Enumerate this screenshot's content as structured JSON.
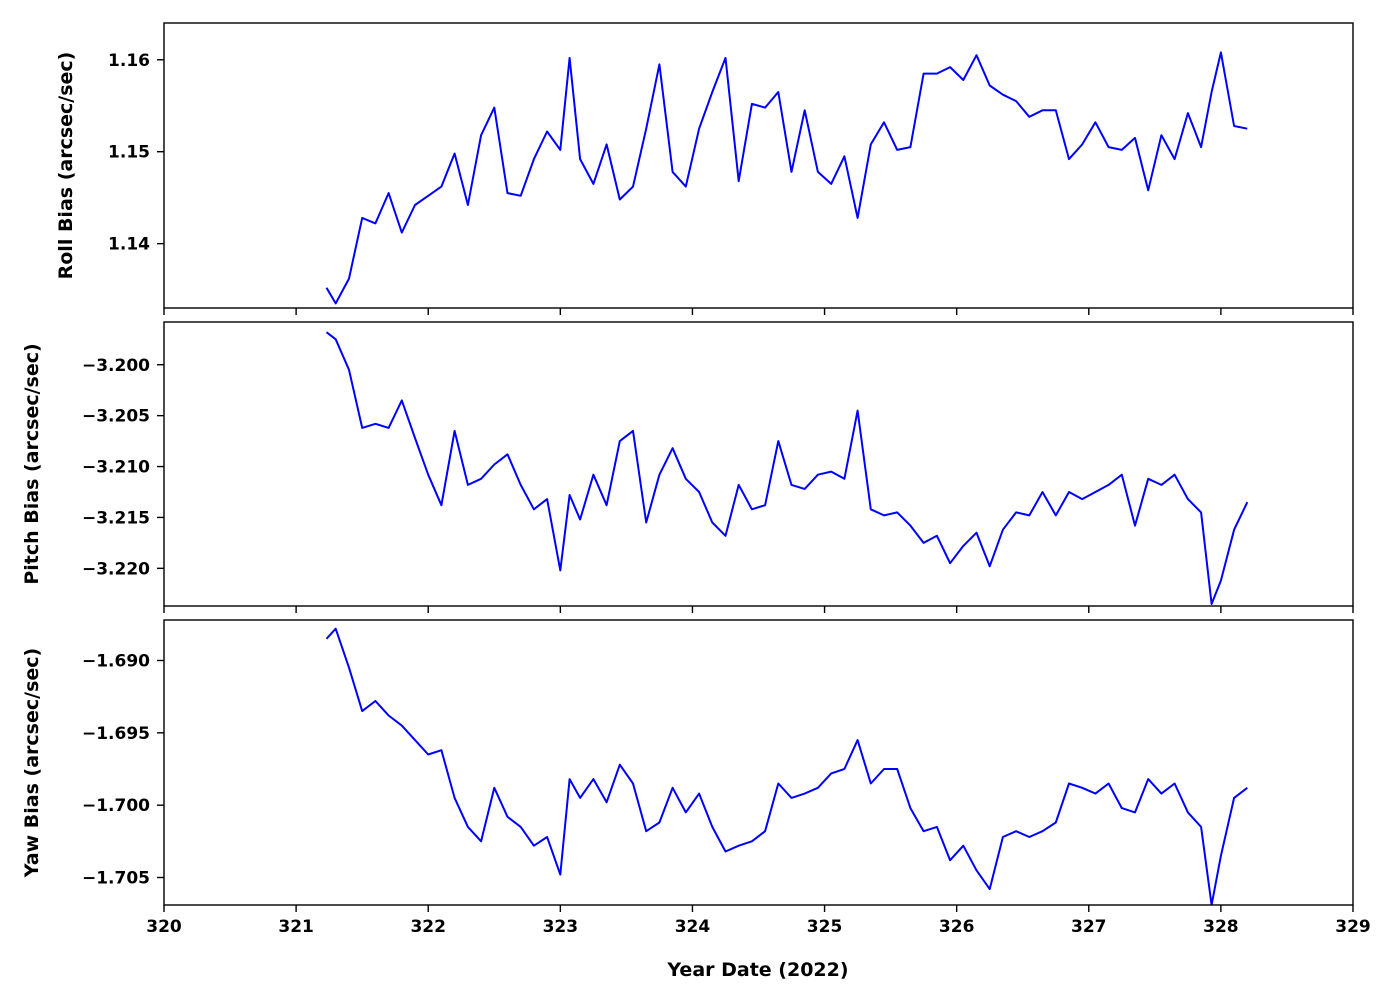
{
  "chart_data": {
    "type": "line",
    "figure": {
      "xlabel": "Year Date (2022)",
      "xlim": [
        320,
        329
      ],
      "xticks": [
        320,
        321,
        322,
        323,
        324,
        325,
        326,
        327,
        328,
        329
      ],
      "xticklabels": [
        "320",
        "321",
        "322",
        "323",
        "324",
        "325",
        "326",
        "327",
        "328",
        "329"
      ],
      "line_color": "#0000ff"
    },
    "panels": [
      {
        "ylabel": "Roll Bias (arcsec/sec)",
        "ylim": [
          1.133,
          1.164
        ],
        "yticks": [
          1.14,
          1.15,
          1.16
        ],
        "yticklabels": [
          "1.14",
          "1.15",
          "1.16"
        ],
        "x": [
          321.23,
          321.3,
          321.4,
          321.5,
          321.6,
          321.7,
          321.8,
          321.9,
          322.0,
          322.1,
          322.2,
          322.3,
          322.4,
          322.5,
          322.6,
          322.7,
          322.8,
          322.9,
          323.0,
          323.07,
          323.15,
          323.25,
          323.35,
          323.45,
          323.55,
          323.65,
          323.75,
          323.85,
          323.95,
          324.05,
          324.15,
          324.25,
          324.35,
          324.45,
          324.55,
          324.65,
          324.75,
          324.85,
          324.95,
          325.05,
          325.15,
          325.25,
          325.35,
          325.45,
          325.55,
          325.65,
          325.75,
          325.85,
          325.95,
          326.05,
          326.15,
          326.25,
          326.35,
          326.45,
          326.55,
          326.65,
          326.75,
          326.85,
          326.95,
          327.05,
          327.15,
          327.25,
          327.35,
          327.45,
          327.55,
          327.65,
          327.75,
          327.85,
          327.93,
          328.0,
          328.1,
          328.2
        ],
        "y": [
          1.1352,
          1.1335,
          1.1362,
          1.1428,
          1.1422,
          1.1455,
          1.1412,
          1.1442,
          1.1452,
          1.1462,
          1.1498,
          1.1442,
          1.1518,
          1.1548,
          1.1455,
          1.1452,
          1.1492,
          1.1522,
          1.1502,
          1.1602,
          1.1492,
          1.1465,
          1.1508,
          1.1448,
          1.1462,
          1.1525,
          1.1595,
          1.1478,
          1.1462,
          1.1525,
          1.1565,
          1.1602,
          1.1468,
          1.1552,
          1.1548,
          1.1565,
          1.1478,
          1.1545,
          1.1478,
          1.1465,
          1.1495,
          1.1428,
          1.1508,
          1.1532,
          1.1502,
          1.1505,
          1.1585,
          1.1585,
          1.1592,
          1.1578,
          1.1605,
          1.1572,
          1.1562,
          1.1555,
          1.1538,
          1.1545,
          1.1545,
          1.1492,
          1.1508,
          1.1532,
          1.1505,
          1.1502,
          1.1515,
          1.1458,
          1.1518,
          1.1492,
          1.1542,
          1.1505,
          1.1565,
          1.1608,
          1.1528,
          1.1525
        ]
      },
      {
        "ylabel": "Pitch Bias (arcsec/sec)",
        "ylim": [
          -3.2237,
          -3.1958
        ],
        "yticks": [
          -3.2,
          -3.205,
          -3.21,
          -3.215,
          -3.22
        ],
        "yticklabels": [
          "−3.200",
          "−3.205",
          "−3.210",
          "−3.215",
          "−3.220"
        ],
        "x": [
          321.23,
          321.3,
          321.4,
          321.5,
          321.6,
          321.7,
          321.8,
          321.9,
          322.0,
          322.1,
          322.2,
          322.3,
          322.4,
          322.5,
          322.6,
          322.7,
          322.8,
          322.9,
          323.0,
          323.07,
          323.15,
          323.25,
          323.35,
          323.45,
          323.55,
          323.65,
          323.75,
          323.85,
          323.95,
          324.05,
          324.15,
          324.25,
          324.35,
          324.45,
          324.55,
          324.65,
          324.75,
          324.85,
          324.95,
          325.05,
          325.15,
          325.25,
          325.35,
          325.45,
          325.55,
          325.65,
          325.75,
          325.85,
          325.95,
          326.05,
          326.15,
          326.25,
          326.35,
          326.45,
          326.55,
          326.65,
          326.75,
          326.85,
          326.95,
          327.05,
          327.15,
          327.25,
          327.35,
          327.45,
          327.55,
          327.65,
          327.75,
          327.85,
          327.93,
          328.0,
          328.1,
          328.2
        ],
        "y": [
          -3.1968,
          -3.1975,
          -3.2005,
          -3.2062,
          -3.2058,
          -3.2062,
          -3.2035,
          -3.2072,
          -3.2108,
          -3.2138,
          -3.2065,
          -3.2118,
          -3.2112,
          -3.2098,
          -3.2088,
          -3.2118,
          -3.2142,
          -3.2132,
          -3.2202,
          -3.2128,
          -3.2152,
          -3.2108,
          -3.2138,
          -3.2075,
          -3.2065,
          -3.2155,
          -3.2108,
          -3.2082,
          -3.2112,
          -3.2125,
          -3.2155,
          -3.2168,
          -3.2118,
          -3.2142,
          -3.2138,
          -3.2075,
          -3.2118,
          -3.2122,
          -3.2108,
          -3.2105,
          -3.2112,
          -3.2045,
          -3.2142,
          -3.2148,
          -3.2145,
          -3.2158,
          -3.2175,
          -3.2168,
          -3.2195,
          -3.2178,
          -3.2165,
          -3.2198,
          -3.2162,
          -3.2145,
          -3.2148,
          -3.2125,
          -3.2148,
          -3.2125,
          -3.2132,
          -3.2125,
          -3.2118,
          -3.2108,
          -3.2158,
          -3.2112,
          -3.2118,
          -3.2108,
          -3.2132,
          -3.2145,
          -3.2235,
          -3.2212,
          -3.2162,
          -3.2135
        ]
      },
      {
        "ylabel": "Yaw Bias (arcsec/sec)",
        "ylim": [
          -1.7069,
          -1.6872
        ],
        "yticks": [
          -1.69,
          -1.695,
          -1.7,
          -1.705
        ],
        "yticklabels": [
          "−1.690",
          "−1.695",
          "−1.700",
          "−1.705"
        ],
        "x": [
          321.23,
          321.3,
          321.4,
          321.5,
          321.6,
          321.7,
          321.8,
          321.9,
          322.0,
          322.1,
          322.2,
          322.3,
          322.4,
          322.5,
          322.6,
          322.7,
          322.8,
          322.9,
          323.0,
          323.07,
          323.15,
          323.25,
          323.35,
          323.45,
          323.55,
          323.65,
          323.75,
          323.85,
          323.95,
          324.05,
          324.15,
          324.25,
          324.35,
          324.45,
          324.55,
          324.65,
          324.75,
          324.85,
          324.95,
          325.05,
          325.15,
          325.25,
          325.35,
          325.45,
          325.55,
          325.65,
          325.75,
          325.85,
          325.95,
          326.05,
          326.15,
          326.25,
          326.35,
          326.45,
          326.55,
          326.65,
          326.75,
          326.85,
          326.95,
          327.05,
          327.15,
          327.25,
          327.35,
          327.45,
          327.55,
          327.65,
          327.75,
          327.85,
          327.93,
          328.0,
          328.1,
          328.2
        ],
        "y": [
          -1.6885,
          -1.6878,
          -1.6905,
          -1.6935,
          -1.6928,
          -1.6938,
          -1.6945,
          -1.6955,
          -1.6965,
          -1.6962,
          -1.6995,
          -1.7015,
          -1.7025,
          -1.6988,
          -1.7008,
          -1.7015,
          -1.7028,
          -1.7022,
          -1.7048,
          -1.6982,
          -1.6995,
          -1.6982,
          -1.6998,
          -1.6972,
          -1.6985,
          -1.7018,
          -1.7012,
          -1.6988,
          -1.7005,
          -1.6992,
          -1.7015,
          -1.7032,
          -1.7028,
          -1.7025,
          -1.7018,
          -1.6985,
          -1.6995,
          -1.6992,
          -1.6988,
          -1.6978,
          -1.6975,
          -1.6955,
          -1.6985,
          -1.6975,
          -1.6975,
          -1.7002,
          -1.7018,
          -1.7015,
          -1.7038,
          -1.7028,
          -1.7045,
          -1.7058,
          -1.7022,
          -1.7018,
          -1.7022,
          -1.7018,
          -1.7012,
          -1.6985,
          -1.6988,
          -1.6992,
          -1.6985,
          -1.7002,
          -1.7005,
          -1.6982,
          -1.6992,
          -1.6985,
          -1.7005,
          -1.7015,
          -1.7069,
          -1.7035,
          -1.6995,
          -1.6988
        ]
      }
    ]
  }
}
